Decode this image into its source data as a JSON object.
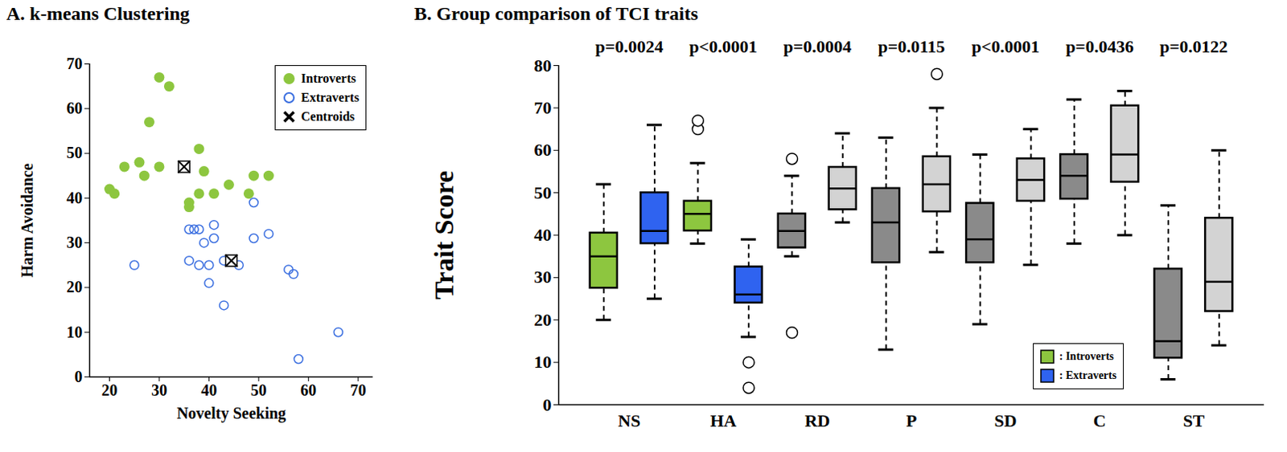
{
  "chart_data": [
    {
      "type": "scatter",
      "title": "A. k-means Clustering",
      "x_label": "Novelty Seeking",
      "y_label": "Harm Avoidance",
      "xlim": [
        16,
        73
      ],
      "xticks": [
        20,
        30,
        40,
        50,
        60,
        70
      ],
      "ylim": [
        0,
        70
      ],
      "yticks": [
        0,
        10,
        20,
        30,
        40,
        50,
        60,
        70
      ],
      "legend": "top-right",
      "series": [
        {
          "name": "Introverts",
          "color": "#8dc63f",
          "marker": "filled circle",
          "x": [
            20,
            21,
            23,
            26,
            27,
            28,
            30,
            30,
            32,
            36,
            36,
            38,
            38,
            39,
            41,
            44,
            48,
            49,
            52
          ],
          "values": [
            42,
            41,
            47,
            48,
            45,
            57,
            67,
            47,
            65,
            39,
            38,
            51,
            41,
            46,
            41,
            43,
            41,
            45,
            45
          ]
        },
        {
          "name": "Extraverts",
          "color": "#3b6fe0",
          "marker": "open circle",
          "x": [
            25,
            36,
            36,
            37,
            38,
            38,
            39,
            40,
            40,
            41,
            41,
            43,
            43,
            46,
            49,
            49,
            52,
            56,
            57,
            58,
            66
          ],
          "values": [
            25,
            33,
            26,
            33,
            33,
            25,
            30,
            25,
            21,
            31,
            34,
            16,
            26,
            25,
            39,
            31,
            32,
            24,
            23,
            4,
            10
          ]
        },
        {
          "name": "Centroids",
          "color": "#000000",
          "marker": "boxed x",
          "x": [
            35,
            44.5
          ],
          "values": [
            47,
            26
          ]
        }
      ]
    },
    {
      "type": "box",
      "title": "B. Group comparison of TCI traits",
      "y_label": "Trait Score",
      "categories": [
        "NS",
        "HA",
        "RD",
        "P",
        "SD",
        "C",
        "ST"
      ],
      "ylim": [
        0,
        80
      ],
      "yticks": [
        0,
        10,
        20,
        30,
        40,
        50,
        60,
        70,
        80
      ],
      "annotations": [
        "p=0.0024",
        "p<0.0001",
        "p=0.0004",
        "p=0.0115",
        "p<0.0001",
        "p=0.0436",
        "p=0.0122"
      ],
      "legend": "bottom-right",
      "line_style": "dashed",
      "series": [
        {
          "name": ": Introverts",
          "color": "#8dc63f",
          "colors": [
            "#8dc63f",
            "#8dc63f",
            "#8a8a8a",
            "#8a8a8a",
            "#8a8a8a",
            "#8a8a8a",
            "#8a8a8a"
          ],
          "whisker_low": [
            20,
            38,
            35,
            13,
            19,
            38,
            6
          ],
          "q1": [
            27.5,
            41,
            37,
            33.5,
            33.5,
            48.5,
            11
          ],
          "median": [
            35,
            45,
            41,
            43,
            39,
            54,
            15
          ],
          "q3": [
            40.5,
            48,
            45,
            51,
            47.5,
            59,
            32
          ],
          "whisker_high": [
            52,
            57,
            54,
            63,
            59,
            72,
            47
          ],
          "outliers": [
            [],
            [
              65,
              67
            ],
            [
              17,
              58
            ],
            [],
            [],
            [],
            []
          ]
        },
        {
          "name": ": Extraverts",
          "color": "#2f63f0",
          "colors": [
            "#2f63f0",
            "#2f63f0",
            "#d3d3d3",
            "#d3d3d3",
            "#d3d3d3",
            "#d3d3d3",
            "#d3d3d3"
          ],
          "whisker_low": [
            25,
            16,
            43,
            36,
            33,
            40,
            14
          ],
          "q1": [
            38,
            24,
            46,
            45.5,
            48,
            52.5,
            22
          ],
          "median": [
            41,
            26,
            51,
            52,
            53,
            59,
            29
          ],
          "q3": [
            50,
            32.5,
            56,
            58.5,
            58,
            70.5,
            44
          ],
          "whisker_high": [
            66,
            39,
            64,
            70,
            65,
            74,
            60
          ],
          "outliers": [
            [],
            [
              4,
              10
            ],
            [],
            [
              78
            ],
            [],
            [],
            []
          ]
        }
      ]
    }
  ]
}
